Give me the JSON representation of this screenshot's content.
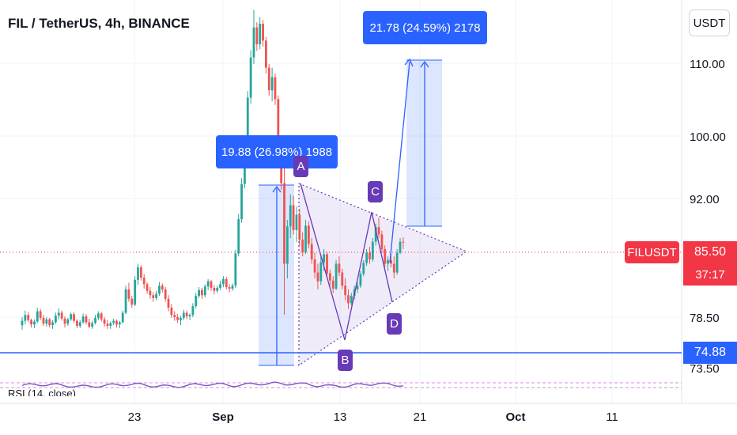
{
  "header": {
    "title": "FIL / TetherUS, 4h, BINANCE",
    "currency_button": "USDT"
  },
  "price_tag": {
    "symbol": "FILUSDT",
    "price": "85.50",
    "countdown": "37:17"
  },
  "level_tag": "74.88",
  "measurements": {
    "first": "19.88 (26.98%) 1988",
    "second": "21.78 (24.59%) 2178"
  },
  "pattern_points": {
    "a": "A",
    "b": "B",
    "c": "C",
    "d": "D"
  },
  "indicator_label": "RSI (14, close)",
  "colors": {
    "up": "#26a69a",
    "down": "#ef5350",
    "measure": "#2962ff",
    "pattern": "#673ab7",
    "price_line": "#f23645"
  },
  "chart_data": {
    "type": "candlestick",
    "title": "FIL / TetherUS, 4h, BINANCE",
    "y_ticks": [
      "110.00",
      "100.00",
      "92.00",
      "78.50",
      "73.50"
    ],
    "x_ticks": [
      "23",
      "Sep",
      "13",
      "21",
      "Oct",
      "11"
    ],
    "current_price": 85.5,
    "support_level": 74.88,
    "ohlc": [
      [
        74.2,
        75.3,
        73.6,
        74.8
      ],
      [
        74.8,
        76.2,
        74.3,
        75.6
      ],
      [
        75.6,
        76.0,
        74.6,
        74.9
      ],
      [
        74.9,
        75.1,
        73.9,
        74.3
      ],
      [
        74.3,
        75.0,
        73.8,
        74.7
      ],
      [
        74.7,
        76.6,
        74.5,
        76.1
      ],
      [
        76.1,
        76.4,
        74.9,
        75.2
      ],
      [
        75.2,
        75.6,
        74.1,
        74.4
      ],
      [
        74.4,
        75.3,
        74.0,
        75.0
      ],
      [
        75.0,
        75.2,
        73.9,
        74.2
      ],
      [
        74.2,
        74.9,
        73.7,
        74.6
      ],
      [
        74.6,
        75.9,
        74.4,
        75.5
      ],
      [
        75.5,
        76.5,
        75.0,
        75.9
      ],
      [
        75.9,
        76.2,
        74.8,
        75.1
      ],
      [
        75.1,
        75.4,
        73.9,
        74.4
      ],
      [
        74.4,
        75.2,
        74.1,
        75.0
      ],
      [
        75.0,
        75.9,
        74.8,
        75.7
      ],
      [
        75.7,
        76.0,
        74.5,
        74.8
      ],
      [
        74.8,
        75.0,
        73.8,
        74.1
      ],
      [
        74.1,
        74.9,
        73.8,
        74.6
      ],
      [
        74.6,
        75.8,
        74.4,
        75.4
      ],
      [
        75.4,
        75.7,
        74.3,
        74.6
      ],
      [
        74.6,
        75.1,
        73.8,
        74.0
      ],
      [
        74.0,
        74.8,
        73.7,
        74.5
      ],
      [
        74.5,
        75.6,
        74.3,
        75.2
      ],
      [
        75.2,
        76.1,
        74.9,
        75.8
      ],
      [
        75.8,
        76.0,
        74.7,
        75.0
      ],
      [
        75.0,
        75.3,
        74.0,
        74.4
      ],
      [
        74.4,
        74.9,
        73.7,
        74.1
      ],
      [
        74.1,
        74.7,
        73.7,
        74.5
      ],
      [
        74.5,
        75.1,
        74.2,
        74.8
      ],
      [
        74.8,
        75.0,
        73.9,
        74.3
      ],
      [
        74.3,
        74.8,
        73.8,
        74.6
      ],
      [
        74.6,
        76.2,
        74.4,
        75.9
      ],
      [
        75.9,
        79.6,
        75.7,
        79.1
      ],
      [
        79.1,
        80.0,
        77.4,
        77.8
      ],
      [
        77.8,
        78.2,
        76.6,
        77.0
      ],
      [
        77.0,
        80.9,
        76.8,
        80.4
      ],
      [
        80.4,
        82.6,
        79.7,
        82.1
      ],
      [
        82.1,
        82.4,
        80.3,
        80.7
      ],
      [
        80.7,
        81.2,
        79.2,
        79.8
      ],
      [
        79.8,
        80.1,
        78.5,
        78.9
      ],
      [
        78.9,
        79.4,
        77.8,
        78.3
      ],
      [
        78.3,
        78.7,
        77.4,
        77.9
      ],
      [
        77.9,
        78.9,
        77.6,
        78.5
      ],
      [
        78.5,
        80.1,
        78.2,
        79.6
      ],
      [
        79.6,
        79.9,
        78.7,
        79.1
      ],
      [
        79.1,
        79.4,
        77.4,
        77.8
      ],
      [
        77.8,
        78.3,
        76.1,
        76.6
      ],
      [
        76.6,
        77.1,
        75.2,
        75.6
      ],
      [
        75.6,
        76.1,
        74.8,
        75.3
      ],
      [
        75.3,
        75.7,
        74.5,
        74.9
      ],
      [
        74.9,
        75.5,
        74.2,
        75.2
      ],
      [
        75.2,
        76.3,
        74.9,
        75.9
      ],
      [
        75.9,
        76.2,
        75.0,
        75.4
      ],
      [
        75.4,
        75.8,
        74.9,
        75.6
      ],
      [
        75.6,
        77.2,
        75.3,
        76.8
      ],
      [
        76.8,
        78.6,
        76.5,
        78.2
      ],
      [
        78.2,
        79.4,
        77.9,
        79.0
      ],
      [
        79.0,
        79.3,
        77.8,
        78.3
      ],
      [
        78.3,
        79.8,
        78.0,
        79.5
      ],
      [
        79.5,
        80.5,
        79.0,
        80.2
      ],
      [
        80.2,
        80.4,
        78.9,
        79.3
      ],
      [
        79.3,
        79.7,
        78.4,
        78.9
      ],
      [
        78.9,
        79.6,
        78.6,
        79.3
      ],
      [
        79.3,
        80.3,
        79.0,
        79.8
      ],
      [
        79.8,
        80.9,
        79.4,
        80.5
      ],
      [
        80.5,
        80.8,
        79.1,
        79.4
      ],
      [
        79.4,
        79.8,
        78.7,
        79.2
      ],
      [
        79.2,
        79.9,
        78.9,
        79.6
      ],
      [
        79.6,
        84.5,
        79.3,
        84.0
      ],
      [
        84.0,
        89.4,
        83.6,
        88.7
      ],
      [
        88.7,
        94.3,
        88.2,
        93.5
      ],
      [
        93.5,
        99.6,
        92.9,
        98.6
      ],
      [
        98.6,
        106.2,
        97.9,
        105.3
      ],
      [
        105.3,
        111.8,
        104.5,
        110.8
      ],
      [
        110.8,
        117.3,
        109.9,
        114.9
      ],
      [
        114.9,
        115.6,
        111.7,
        112.6
      ],
      [
        112.6,
        116.3,
        111.9,
        115.4
      ],
      [
        115.4,
        115.9,
        112.3,
        113.1
      ],
      [
        113.1,
        113.6,
        108.6,
        109.4
      ],
      [
        109.4,
        109.9,
        105.6,
        106.3
      ],
      [
        106.3,
        109.4,
        104.8,
        108.1
      ],
      [
        108.1,
        108.6,
        104.3,
        105.1
      ],
      [
        105.1,
        105.6,
        96.9,
        97.9
      ],
      [
        97.9,
        98.6,
        92.7,
        93.6
      ],
      [
        93.6,
        96.5,
        75.6,
        82.6
      ],
      [
        82.6,
        88.6,
        80.6,
        87.7
      ],
      [
        87.7,
        92.1,
        86.1,
        90.6
      ],
      [
        90.6,
        91.9,
        86.6,
        87.2
      ],
      [
        87.2,
        90.4,
        85.6,
        89.3
      ],
      [
        89.3,
        90.1,
        85.1,
        85.9
      ],
      [
        85.9,
        86.9,
        83.6,
        84.2
      ],
      [
        84.2,
        88.6,
        83.9,
        87.8
      ],
      [
        87.8,
        88.4,
        84.7,
        85.3
      ],
      [
        85.3,
        86.1,
        82.6,
        83.2
      ],
      [
        83.2,
        84.1,
        80.6,
        81.4
      ],
      [
        81.4,
        82.6,
        79.1,
        80.2
      ],
      [
        80.2,
        83.6,
        79.7,
        82.8
      ],
      [
        82.8,
        84.6,
        81.6,
        83.9
      ],
      [
        83.9,
        84.2,
        80.6,
        81.3
      ],
      [
        81.3,
        81.8,
        79.6,
        80.3
      ],
      [
        80.3,
        80.9,
        78.6,
        79.2
      ],
      [
        79.2,
        83.1,
        79.0,
        82.6
      ],
      [
        82.6,
        83.6,
        80.9,
        81.4
      ],
      [
        81.4,
        81.9,
        79.1,
        79.6
      ],
      [
        79.6,
        80.6,
        77.6,
        78.3
      ],
      [
        78.3,
        79.1,
        76.4,
        77.2
      ],
      [
        77.2,
        78.6,
        76.9,
        78.2
      ],
      [
        78.2,
        79.6,
        77.7,
        79.1
      ],
      [
        79.1,
        80.1,
        78.6,
        79.6
      ],
      [
        79.6,
        81.6,
        79.3,
        81.2
      ],
      [
        81.2,
        83.1,
        80.9,
        82.7
      ],
      [
        82.7,
        84.6,
        82.3,
        84.1
      ],
      [
        84.1,
        84.9,
        82.6,
        83.2
      ],
      [
        83.2,
        86.1,
        82.9,
        85.6
      ],
      [
        85.6,
        88.1,
        85.1,
        87.6
      ],
      [
        87.6,
        88.9,
        86.1,
        86.6
      ],
      [
        86.6,
        87.1,
        84.1,
        84.6
      ],
      [
        84.6,
        85.1,
        82.1,
        82.6
      ],
      [
        82.6,
        83.6,
        81.6,
        83.1
      ],
      [
        83.1,
        84.1,
        82.1,
        82.6
      ],
      [
        82.6,
        83.6,
        80.6,
        81.4
      ],
      [
        81.4,
        84.6,
        81.1,
        84.1
      ],
      [
        84.1,
        86.1,
        83.9,
        85.6
      ],
      [
        85.6,
        86.2,
        84.6,
        85.5
      ]
    ]
  }
}
